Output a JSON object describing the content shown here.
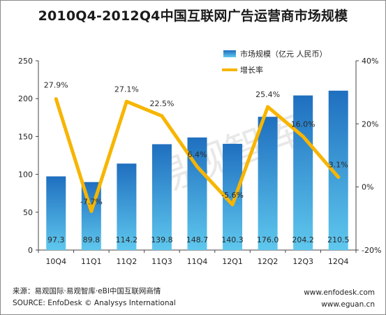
{
  "chart_data": {
    "type": "bar",
    "title": "2010Q4-2012Q4中国互联网广告运营商市场规模",
    "categories": [
      "10Q4",
      "11Q1",
      "11Q2",
      "11Q3",
      "11Q4",
      "12Q1",
      "12Q2",
      "12Q3",
      "12Q4"
    ],
    "series": [
      {
        "name": "市场规模（亿元 人民币）",
        "type": "bar",
        "axis": "left",
        "values": [
          97.3,
          89.8,
          114.2,
          139.8,
          148.7,
          140.3,
          176.0,
          204.2,
          210.5
        ],
        "labels": [
          "97.3",
          "89.8",
          "114.2",
          "139.8",
          "148.7",
          "140.3",
          "176.0",
          "204.2",
          "210.5"
        ]
      },
      {
        "name": "增长率",
        "type": "line",
        "axis": "right",
        "values": [
          27.9,
          -7.7,
          27.1,
          22.5,
          6.4,
          -5.6,
          25.4,
          16.0,
          3.1
        ],
        "labels": [
          "27.9%",
          "-7.7%",
          "27.1%",
          "22.5%",
          "6.4%",
          "-5.6%",
          "25.4%",
          "16.0%",
          "3.1%"
        ]
      }
    ],
    "ylim_left": [
      0,
      250
    ],
    "yticks_left": [
      "0",
      "50",
      "100",
      "150",
      "200",
      "250"
    ],
    "ylim_right": [
      -20,
      40
    ],
    "yticks_right": [
      "-20%",
      "0%",
      "20%",
      "40%"
    ],
    "grid": false,
    "legend_position": "top-right",
    "colors": {
      "bar_top": "#1f6fbf",
      "bar_bottom": "#5fc8ee",
      "line": "#f7b500"
    }
  },
  "watermark": "易观智库",
  "footer": {
    "source_cn": "来源：易观国际·易观智库·eBI中国互联网商情",
    "source_en": "SOURCE:  EnfoDesk © Analysys International",
    "url1": "www.enfodesk.com",
    "url2": "www.eguan.cn"
  }
}
